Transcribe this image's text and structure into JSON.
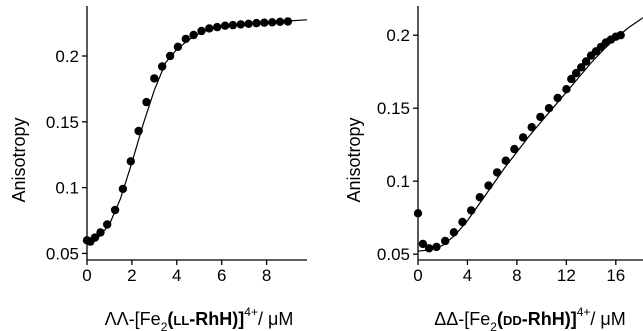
{
  "chart_data": [
    {
      "type": "scatter",
      "panel": "left",
      "ylabel": "Anisotropy",
      "xlabel": {
        "prefix": "ΛΛ-[Fe",
        "sub": "2",
        "open": "(",
        "sc": "LL",
        "bold": "-RhH",
        "close": ")]",
        "sup": "4+",
        "unit": "/ μM"
      },
      "xlim": [
        0,
        9.8
      ],
      "ylim": [
        0.045,
        0.238
      ],
      "xticks": [
        "0",
        "2",
        "4",
        "6",
        "8"
      ],
      "xtick_values": [
        0,
        2,
        4,
        6,
        8
      ],
      "yticks": [
        "0.05",
        "0.1",
        "0.15",
        "0.2"
      ],
      "ytick_values": [
        0.05,
        0.1,
        0.15,
        0.2
      ],
      "grid": false,
      "points": {
        "x": [
          0.0,
          0.15,
          0.35,
          0.6,
          0.9,
          1.25,
          1.6,
          1.95,
          2.3,
          2.65,
          3.0,
          3.35,
          3.7,
          4.05,
          4.4,
          4.75,
          5.1,
          5.45,
          5.8,
          6.15,
          6.5,
          6.85,
          7.2,
          7.55,
          7.9,
          8.25,
          8.6,
          8.95
        ],
        "y": [
          0.06,
          0.059,
          0.062,
          0.066,
          0.072,
          0.083,
          0.099,
          0.12,
          0.143,
          0.165,
          0.183,
          0.192,
          0.2,
          0.207,
          0.213,
          0.216,
          0.219,
          0.221,
          0.222,
          0.223,
          0.2235,
          0.224,
          0.2245,
          0.225,
          0.2253,
          0.2256,
          0.226,
          0.2262
        ]
      },
      "fit": {
        "x": [
          0.0,
          0.5,
          1.0,
          1.5,
          2.0,
          2.5,
          3.0,
          3.5,
          4.0,
          4.5,
          5.0,
          5.5,
          6.0,
          6.5,
          7.0,
          7.5,
          8.0,
          8.5,
          9.0,
          9.5,
          9.8
        ],
        "y": [
          0.058,
          0.062,
          0.072,
          0.092,
          0.119,
          0.148,
          0.174,
          0.195,
          0.205,
          0.212,
          0.217,
          0.2205,
          0.2225,
          0.2235,
          0.2242,
          0.2249,
          0.2255,
          0.226,
          0.2266,
          0.2272,
          0.2275
        ]
      }
    },
    {
      "type": "scatter",
      "panel": "right",
      "ylabel": "Anisotropy",
      "xlabel": {
        "prefix": "ΔΔ-[Fe",
        "sub": "2",
        "open": "(",
        "sc": "DD",
        "bold": "-RhH",
        "close": ")]",
        "sup": "4+",
        "unit": "/ μM"
      },
      "xlim": [
        0,
        18.2
      ],
      "ylim": [
        0.046,
        0.22
      ],
      "xticks": [
        "0",
        "4",
        "8",
        "12",
        "16"
      ],
      "xtick_values": [
        0,
        4,
        8,
        12,
        16
      ],
      "yticks": [
        "0.05",
        "0.1",
        "0.15",
        "0.2"
      ],
      "ytick_values": [
        0.05,
        0.1,
        0.15,
        0.2
      ],
      "grid": false,
      "points": {
        "x": [
          0.0,
          0.4,
          0.9,
          1.5,
          2.2,
          2.9,
          3.6,
          4.3,
          5.0,
          5.7,
          6.4,
          7.1,
          7.8,
          8.5,
          9.2,
          9.9,
          10.6,
          11.3,
          12.0,
          12.4,
          12.8,
          13.2,
          13.6,
          14.0,
          14.4,
          14.8,
          15.2,
          15.6,
          16.0,
          16.4
        ],
        "y": [
          0.078,
          0.057,
          0.054,
          0.055,
          0.059,
          0.065,
          0.072,
          0.08,
          0.089,
          0.097,
          0.106,
          0.114,
          0.122,
          0.13,
          0.137,
          0.144,
          0.15,
          0.157,
          0.163,
          0.17,
          0.174,
          0.178,
          0.182,
          0.186,
          0.189,
          0.192,
          0.195,
          0.197,
          0.199,
          0.2
        ]
      },
      "fit": {
        "x": [
          0.0,
          1.0,
          2.0,
          3.0,
          4.0,
          5.0,
          6.0,
          7.0,
          8.0,
          9.0,
          10.0,
          11.0,
          12.0,
          13.0,
          14.0,
          15.0,
          16.0,
          17.0,
          18.2
        ],
        "y": [
          0.052,
          0.053,
          0.056,
          0.063,
          0.073,
          0.085,
          0.097,
          0.109,
          0.12,
          0.131,
          0.141,
          0.151,
          0.161,
          0.171,
          0.181,
          0.19,
          0.198,
          0.205,
          0.212
        ]
      }
    }
  ]
}
